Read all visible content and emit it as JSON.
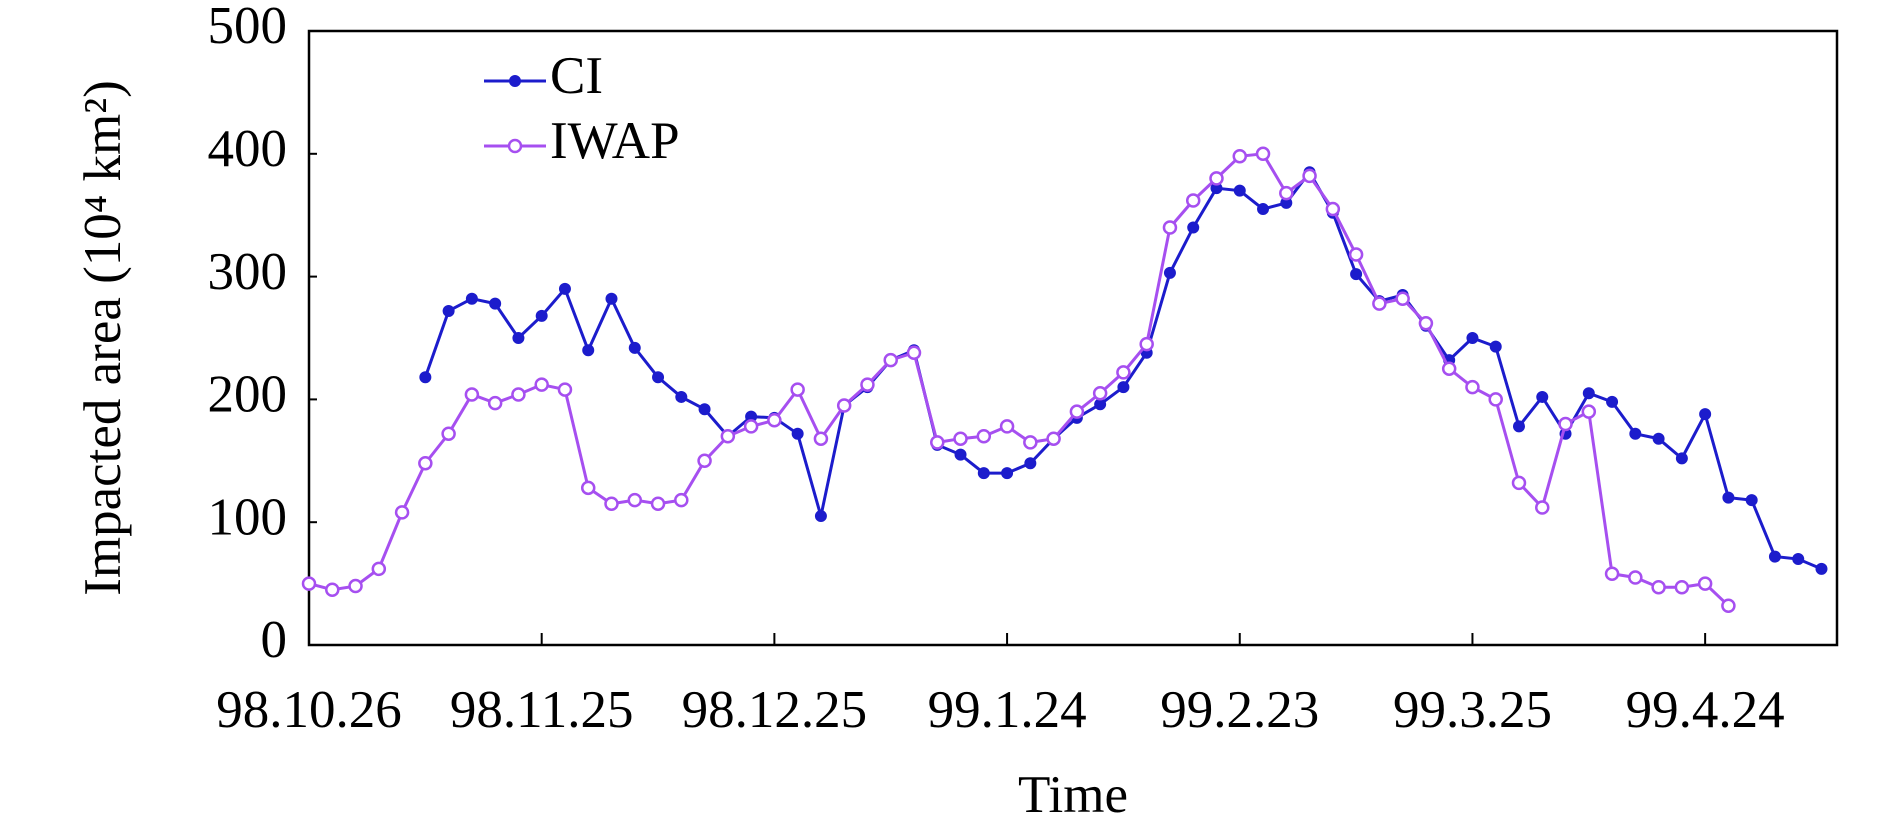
{
  "chart_data": {
    "type": "line",
    "xlabel": "Time",
    "ylabel": "Impacted area (10⁴ km²)",
    "x": [
      "1998-10-26",
      "1998-10-29",
      "1998-11-01",
      "1998-11-04",
      "1998-11-07",
      "1998-11-10",
      "1998-11-13",
      "1998-11-16",
      "1998-11-19",
      "1998-11-22",
      "1998-11-25",
      "1998-11-28",
      "1998-12-01",
      "1998-12-04",
      "1998-12-07",
      "1998-12-10",
      "1998-12-13",
      "1998-12-16",
      "1998-12-19",
      "1998-12-22",
      "1998-12-25",
      "1998-12-28",
      "1998-12-31",
      "1999-01-03",
      "1999-01-06",
      "1999-01-09",
      "1999-01-12",
      "1999-01-15",
      "1999-01-18",
      "1999-01-21",
      "1999-01-24",
      "1999-01-27",
      "1999-01-30",
      "1999-02-02",
      "1999-02-05",
      "1999-02-08",
      "1999-02-11",
      "1999-02-14",
      "1999-02-17",
      "1999-02-20",
      "1999-02-23",
      "1999-02-26",
      "1999-03-01",
      "1999-03-04",
      "1999-03-07",
      "1999-03-10",
      "1999-03-13",
      "1999-03-16",
      "1999-03-19",
      "1999-03-22",
      "1999-03-25",
      "1999-03-28",
      "1999-03-31",
      "1999-04-03",
      "1999-04-06",
      "1999-04-09",
      "1999-04-12",
      "1999-04-15",
      "1999-04-18",
      "1999-04-21",
      "1999-04-24",
      "1999-04-27",
      "1999-04-30",
      "1999-05-03",
      "1999-05-06",
      "1999-05-09"
    ],
    "series": [
      {
        "name": "CI",
        "color": "#1c1ccc",
        "marker": "filled",
        "values": [
          null,
          null,
          null,
          null,
          null,
          218,
          272,
          282,
          278,
          250,
          268,
          290,
          240,
          282,
          242,
          218,
          202,
          192,
          170,
          186,
          185,
          172,
          105,
          195,
          210,
          232,
          240,
          163,
          155,
          140,
          140,
          148,
          168,
          185,
          196,
          210,
          238,
          303,
          340,
          372,
          370,
          355,
          360,
          385,
          352,
          302,
          280,
          285,
          260,
          232,
          250,
          243,
          178,
          202,
          172,
          205,
          198,
          172,
          168,
          152,
          188,
          120,
          118,
          72,
          70,
          62
        ]
      },
      {
        "name": "IWAP",
        "color": "#a64ff0",
        "marker": "open",
        "values": [
          50,
          45,
          48,
          62,
          108,
          148,
          172,
          204,
          197,
          204,
          212,
          208,
          128,
          115,
          118,
          115,
          118,
          150,
          170,
          178,
          183,
          208,
          168,
          195,
          212,
          232,
          238,
          165,
          168,
          170,
          178,
          165,
          168,
          190,
          205,
          222,
          245,
          340,
          362,
          380,
          398,
          400,
          368,
          382,
          355,
          318,
          278,
          282,
          262,
          225,
          210,
          200,
          132,
          112,
          180,
          190,
          58,
          55,
          47,
          47,
          50,
          32,
          null,
          null,
          null,
          null
        ]
      }
    ],
    "xlim": [
      "1998-10-26",
      "1999-05-11"
    ],
    "xticks": [
      {
        "value": "1998-10-26",
        "label": "98.10.26"
      },
      {
        "value": "1998-11-25",
        "label": "98.11.25"
      },
      {
        "value": "1998-12-25",
        "label": "98.12.25"
      },
      {
        "value": "1999-01-24",
        "label": "99.1.24"
      },
      {
        "value": "1999-02-23",
        "label": "99.2.23"
      },
      {
        "value": "1999-03-25",
        "label": "99.3.25"
      },
      {
        "value": "1999-04-24",
        "label": "99.4.24"
      }
    ],
    "ylim": [
      0,
      500
    ],
    "yticks": [
      0,
      100,
      200,
      300,
      400,
      500
    ],
    "legend": "upper-left",
    "grid": false
  }
}
